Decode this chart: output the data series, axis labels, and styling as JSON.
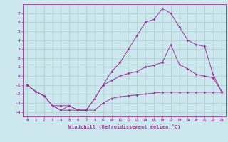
{
  "xlabel": "Windchill (Refroidissement éolien,°C)",
  "bg_color": "#cce8ee",
  "grid_color": "#aacccc",
  "line_color": "#993399",
  "xlim": [
    -0.5,
    23.5
  ],
  "ylim": [
    -4.5,
    8.0
  ],
  "xticks": [
    0,
    1,
    2,
    3,
    4,
    5,
    6,
    7,
    8,
    9,
    10,
    11,
    12,
    13,
    14,
    15,
    16,
    17,
    18,
    19,
    20,
    21,
    22,
    23
  ],
  "yticks": [
    -4,
    -3,
    -2,
    -1,
    0,
    1,
    2,
    3,
    4,
    5,
    6,
    7
  ],
  "series1_x": [
    0,
    1,
    2,
    3,
    4,
    5,
    6,
    7,
    8,
    9,
    10,
    11,
    12,
    13,
    14,
    15,
    16,
    17,
    18,
    19,
    20,
    21,
    22,
    23
  ],
  "series1_y": [
    -1.0,
    -1.7,
    -2.2,
    -3.3,
    -3.8,
    -3.8,
    -3.8,
    -3.8,
    -3.8,
    -3.0,
    -2.5,
    -2.3,
    -2.2,
    -2.1,
    -2.0,
    -1.9,
    -1.8,
    -1.8,
    -1.8,
    -1.8,
    -1.8,
    -1.8,
    -1.8,
    -1.8
  ],
  "series2_x": [
    0,
    1,
    2,
    3,
    4,
    5,
    6,
    7,
    8,
    9,
    10,
    11,
    12,
    13,
    14,
    15,
    16,
    17,
    18,
    19,
    20,
    21,
    22,
    23
  ],
  "series2_y": [
    -1.0,
    -1.7,
    -2.2,
    -3.3,
    -3.3,
    -3.3,
    -3.8,
    -3.8,
    -2.5,
    -1.0,
    -0.5,
    0.0,
    0.3,
    0.5,
    1.0,
    1.2,
    1.5,
    3.5,
    1.3,
    0.8,
    0.2,
    0.0,
    -0.2,
    -1.7
  ],
  "series3_x": [
    0,
    1,
    2,
    3,
    4,
    5,
    6,
    7,
    8,
    9,
    10,
    11,
    12,
    13,
    14,
    15,
    16,
    17,
    18,
    19,
    20,
    21,
    22,
    23
  ],
  "series3_y": [
    -1.0,
    -1.7,
    -2.2,
    -3.3,
    -3.8,
    -3.3,
    -3.8,
    -3.8,
    -2.5,
    -1.0,
    0.5,
    1.5,
    3.0,
    4.5,
    6.0,
    6.3,
    7.5,
    7.0,
    5.5,
    4.0,
    3.5,
    3.3,
    0.2,
    -1.7
  ]
}
